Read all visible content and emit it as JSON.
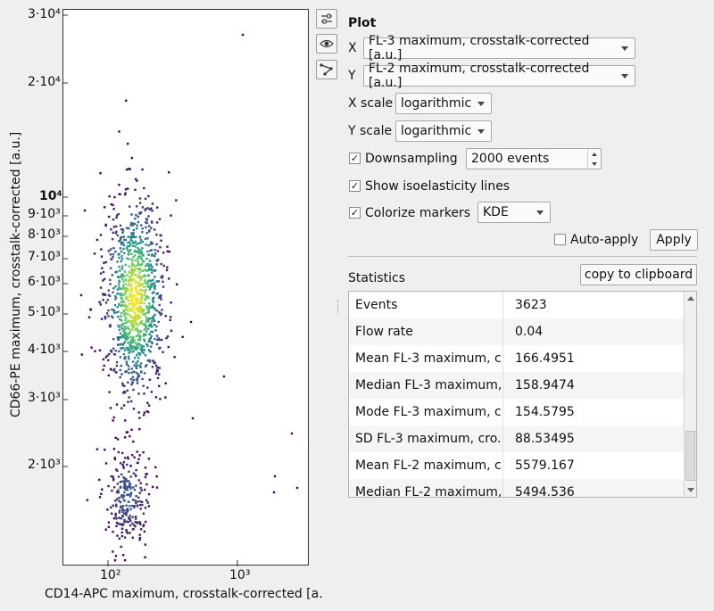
{
  "plot": {
    "x_axis_label": "CD14-APC maximum, crosstalk-corrected [a.",
    "y_axis_label": "CD66-PE maximum, crosstalk-corrected [a.u.]",
    "x_ticks": [
      "10²",
      "10³"
    ],
    "y_ticks": [
      "3·10⁴",
      "2·10⁴",
      "10⁴",
      "9·10³",
      "8·10³",
      "7·10³",
      "6·10³",
      "5·10³",
      "4·10³",
      "3·10³",
      "2·10³"
    ]
  },
  "toolbar": {
    "icons": [
      "sliders-icon",
      "eye-icon",
      "polygon-select-icon"
    ]
  },
  "settings": {
    "title": "Plot",
    "x_label": "X",
    "x_value": "FL-3 maximum, crosstalk-corrected [a.u.]",
    "y_label": "Y",
    "y_value": "FL-2 maximum, crosstalk-corrected [a.u.]",
    "xscale_label": "X scale",
    "xscale_value": "logarithmic",
    "yscale_label": "Y scale",
    "yscale_value": "logarithmic",
    "downsampling_label": "Downsampling",
    "downsampling_checked": true,
    "downsampling_value": "2000 events",
    "isoelasticity_label": "Show isoelasticity lines",
    "isoelasticity_checked": true,
    "colorize_label": "Colorize markers",
    "colorize_checked": true,
    "colorize_value": "KDE",
    "autoapply_label": "Auto-apply",
    "autoapply_checked": false,
    "apply_label": "Apply"
  },
  "statistics": {
    "title": "Statistics",
    "copy_label": "copy to clipboard",
    "rows": [
      {
        "name": "Events",
        "value": "3623"
      },
      {
        "name": "Flow rate",
        "value": "0.04"
      },
      {
        "name": "Mean FL-3 maximum, c...",
        "value": "166.4951"
      },
      {
        "name": "Median FL-3 maximum,...",
        "value": "158.9474"
      },
      {
        "name": "Mode FL-3 maximum, c...",
        "value": "154.5795"
      },
      {
        "name": "SD FL-3 maximum, cro...",
        "value": "88.53495"
      },
      {
        "name": "Mean FL-2 maximum, c...",
        "value": "5579.167"
      },
      {
        "name": "Median FL-2 maximum,...",
        "value": "5494.536"
      }
    ]
  }
}
